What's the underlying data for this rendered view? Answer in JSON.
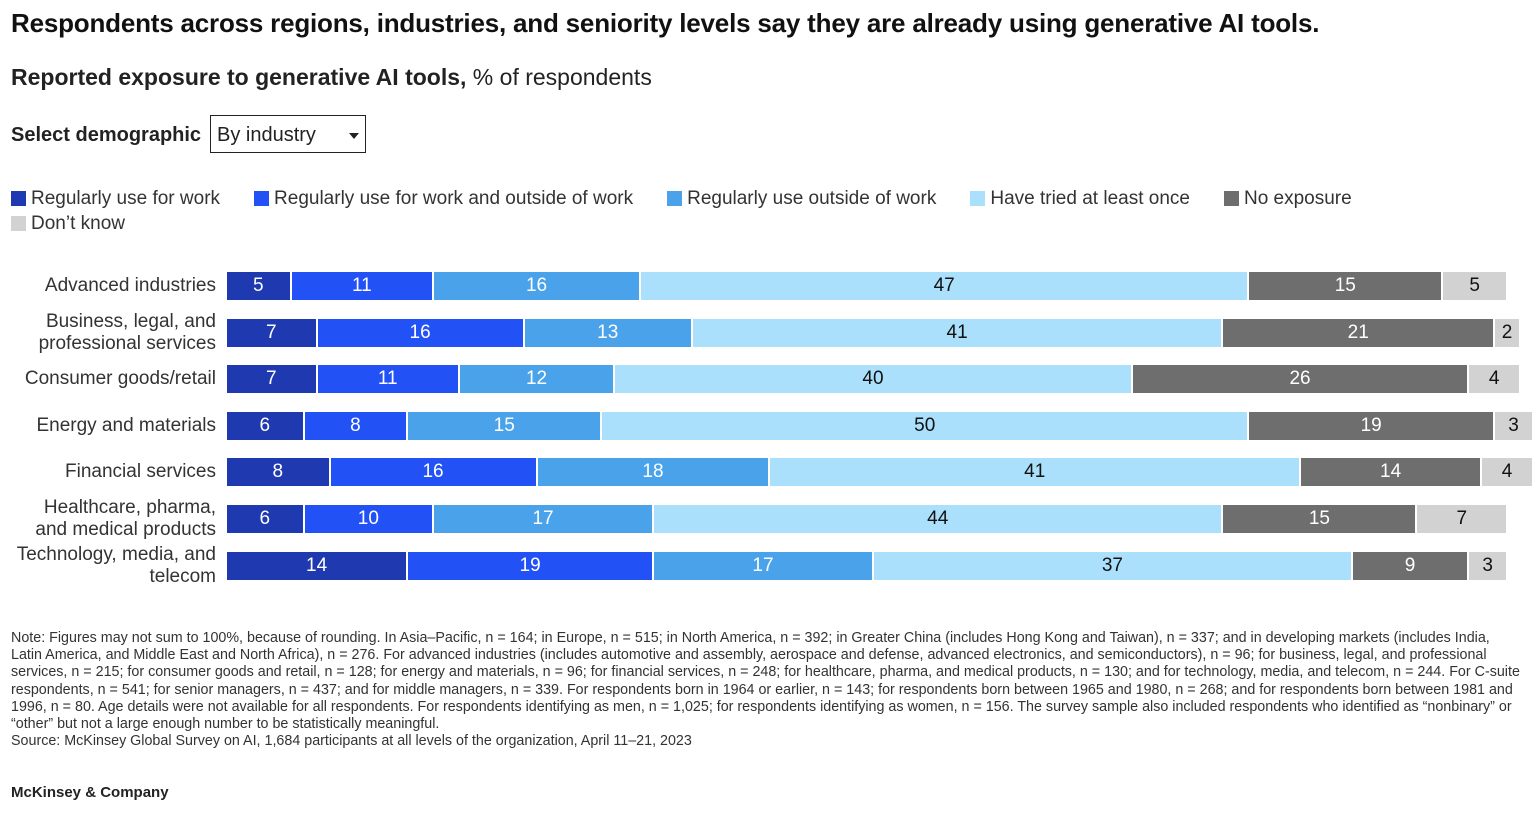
{
  "title": "Respondents across regions, industries, and seniority levels say they are already using generative AI tools.",
  "subtitle": {
    "bold": "Reported exposure to generative AI tools,",
    "rest": " % of respondents"
  },
  "selector": {
    "label": "Select demographic",
    "value": "By industry"
  },
  "chart_data": {
    "type": "bar",
    "orientation": "horizontal",
    "stacked": true,
    "unit": "% of respondents",
    "categories": [
      "Advanced industries",
      "Business, legal, and professional services",
      "Consumer goods/retail",
      "Energy and materials",
      "Financial services",
      "Healthcare, pharma, and medical products",
      "Technology, media, and telecom"
    ],
    "category_lines": [
      [
        "Advanced industries"
      ],
      [
        "Business, legal, and",
        "professional services"
      ],
      [
        "Consumer goods/retail"
      ],
      [
        "Energy and materials"
      ],
      [
        "Financial services"
      ],
      [
        "Healthcare, pharma,",
        "and medical products"
      ],
      [
        "Technology, media, and",
        "telecom"
      ]
    ],
    "legend_position": "top",
    "grid": false,
    "series": [
      {
        "name": "Regularly use for work",
        "color": "#1f39b0",
        "text_color": "#ffffff",
        "values": [
          5,
          7,
          7,
          6,
          8,
          6,
          14
        ]
      },
      {
        "name": "Regularly use for work and outside of work",
        "color": "#2251f5",
        "text_color": "#ffffff",
        "values": [
          11,
          16,
          11,
          8,
          16,
          10,
          19
        ]
      },
      {
        "name": "Regularly use outside of work",
        "color": "#4aa3ea",
        "text_color": "#ffffff",
        "values": [
          16,
          13,
          12,
          15,
          18,
          17,
          17
        ]
      },
      {
        "name": "Have tried at least once",
        "color": "#aae0fb",
        "text_color": "#111111",
        "values": [
          47,
          41,
          40,
          50,
          41,
          44,
          37
        ]
      },
      {
        "name": "No exposure",
        "color": "#6e6e6e",
        "text_color": "#ffffff",
        "values": [
          15,
          21,
          26,
          19,
          14,
          15,
          9
        ]
      },
      {
        "name": "Don’t know",
        "color": "#d2d2d2",
        "text_color": "#111111",
        "values": [
          5,
          2,
          4,
          3,
          4,
          7,
          3
        ]
      }
    ]
  },
  "note": "Note: Figures may not sum to 100%, because of rounding. In Asia–Pacific, n = 164; in Europe, n = 515; in North America, n = 392; in Greater China (includes Hong Kong and Taiwan), n = 337; and in developing markets (includes India, Latin America, and Middle East and North Africa), n = 276. For advanced industries (includes automotive and assembly, aerospace and defense, advanced electronics, and semiconductors), n = 96; for business, legal, and professional services, n = 215; for consumer goods and retail, n = 128; for energy and materials, n = 96; for financial services, n = 248; for healthcare, pharma, and medical products, n = 130; and for technology, media, and telecom, n = 244. For C-suite respondents, n = 541; for senior managers, n = 437; and for middle managers, n = 339. For respondents born in 1964 or earlier, n = 143; for respondents born between 1965 and 1980, n = 268; and for respondents born between 1981 and 1996, n = 80. Age details were not available for all respondents. For respondents identifying as men, n = 1,025; for respondents identifying as women, n = 156. The survey sample also included respondents who identified as “nonbinary” or “other” but not a large enough number to be statistically meaningful.",
  "source": "Source: McKinsey Global Survey on AI, 1,684 participants at all levels of the organization, April 11–21, 2023",
  "brand": "McKinsey & Company"
}
